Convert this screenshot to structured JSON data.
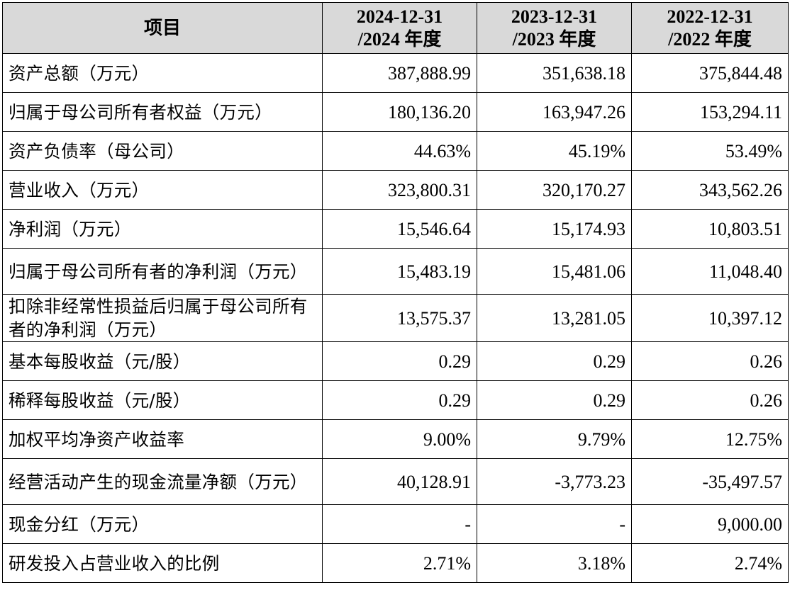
{
  "table": {
    "headers": {
      "item": "项目",
      "col1": [
        "2024-12-31",
        "/2024 年度"
      ],
      "col2": [
        "2023-12-31",
        "/2023 年度"
      ],
      "col3": [
        "2022-12-31",
        "/2022 年度"
      ]
    },
    "rows": [
      {
        "label": "资产总额（万元）",
        "v2024": "387,888.99",
        "v2023": "351,638.18",
        "v2022": "375,844.48"
      },
      {
        "label": "归属于母公司所有者权益（万元）",
        "v2024": "180,136.20",
        "v2023": "163,947.26",
        "v2022": "153,294.11"
      },
      {
        "label": "资产负债率（母公司）",
        "v2024": "44.63%",
        "v2023": "45.19%",
        "v2022": "53.49%"
      },
      {
        "label": "营业收入（万元）",
        "v2024": "323,800.31",
        "v2023": "320,170.27",
        "v2022": "343,562.26"
      },
      {
        "label": "净利润（万元）",
        "v2024": "15,546.64",
        "v2023": "15,174.93",
        "v2022": "10,803.51"
      },
      {
        "label": "归属于母公司所有者的净利润（万元）",
        "v2024": "15,483.19",
        "v2023": "15,481.06",
        "v2022": "11,048.40"
      },
      {
        "label": "扣除非经常性损益后归属于母公司所有者的净利润（万元）",
        "v2024": "13,575.37",
        "v2023": "13,281.05",
        "v2022": "10,397.12"
      },
      {
        "label": "基本每股收益（元/股）",
        "v2024": "0.29",
        "v2023": "0.29",
        "v2022": "0.26"
      },
      {
        "label": "稀释每股收益（元/股）",
        "v2024": "0.29",
        "v2023": "0.29",
        "v2022": "0.26"
      },
      {
        "label": "加权平均净资产收益率",
        "v2024": "9.00%",
        "v2023": "9.79%",
        "v2022": "12.75%"
      },
      {
        "label": "经营活动产生的现金流量净额（万元）",
        "v2024": "40,128.91",
        "v2023": "-3,773.23",
        "v2022": "-35,497.57"
      },
      {
        "label": "现金分红（万元）",
        "v2024": "-",
        "v2023": "-",
        "v2022": "9,000.00"
      },
      {
        "label": "研发投入占营业收入的比例",
        "v2024": "2.71%",
        "v2023": "3.18%",
        "v2022": "2.74%"
      }
    ]
  }
}
